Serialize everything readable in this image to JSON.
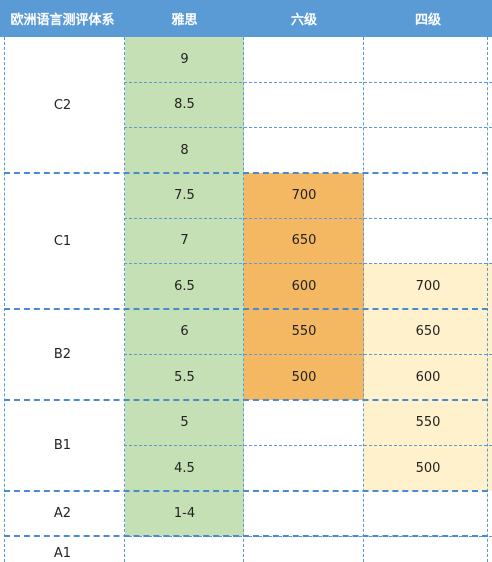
{
  "headers": [
    "欧洲语言测评体系",
    "雅思",
    "六级",
    "四级"
  ],
  "cefr_levels": [
    "C2",
    "C1",
    "B2",
    "B1",
    "A2",
    "A1"
  ],
  "ielts": [
    "9",
    "8.5",
    "8",
    "7.5",
    "7",
    "6.5",
    "6",
    "5.5",
    "5",
    "4.5",
    "1-4"
  ],
  "cet6": [
    "700",
    "650",
    "600",
    "550",
    "500"
  ],
  "cet4": [
    "700",
    "650",
    "600",
    "550",
    "500"
  ],
  "colors": {
    "header_bg": "#5b9bd5",
    "ielts_fill": "#c5e0b4",
    "cet6_fill": "#f4b862",
    "cet4_fill": "#fff1cc",
    "grid_line": "#5b9bd5"
  }
}
